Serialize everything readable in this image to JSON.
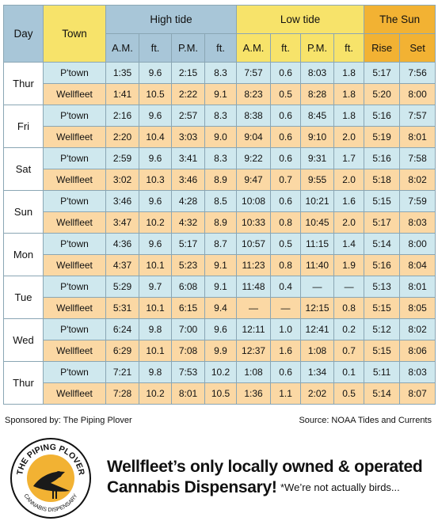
{
  "headers": {
    "day": "Day",
    "town": "Town",
    "high_tide": "High tide",
    "low_tide": "Low tide",
    "sun": "The Sun",
    "am": "A.M.",
    "ft": "ft.",
    "pm": "P.M.",
    "rise": "Rise",
    "set": "Set"
  },
  "days": [
    {
      "day": "Thur",
      "rows": [
        {
          "town": "P'town",
          "h_am": "1:35",
          "h_am_ft": "9.6",
          "h_pm": "2:15",
          "h_pm_ft": "8.3",
          "l_am": "7:57",
          "l_am_ft": "0.6",
          "l_pm": "8:03",
          "l_pm_ft": "1.8",
          "rise": "5:17",
          "set": "7:56"
        },
        {
          "town": "Wellfleet",
          "h_am": "1:41",
          "h_am_ft": "10.5",
          "h_pm": "2:22",
          "h_pm_ft": "9.1",
          "l_am": "8:23",
          "l_am_ft": "0.5",
          "l_pm": "8:28",
          "l_pm_ft": "1.8",
          "rise": "5:20",
          "set": "8:00"
        }
      ]
    },
    {
      "day": "Fri",
      "rows": [
        {
          "town": "P'town",
          "h_am": "2:16",
          "h_am_ft": "9.6",
          "h_pm": "2:57",
          "h_pm_ft": "8.3",
          "l_am": "8:38",
          "l_am_ft": "0.6",
          "l_pm": "8:45",
          "l_pm_ft": "1.8",
          "rise": "5:16",
          "set": "7:57"
        },
        {
          "town": "Wellfleet",
          "h_am": "2:20",
          "h_am_ft": "10.4",
          "h_pm": "3:03",
          "h_pm_ft": "9.0",
          "l_am": "9:04",
          "l_am_ft": "0.6",
          "l_pm": "9:10",
          "l_pm_ft": "2.0",
          "rise": "5:19",
          "set": "8:01"
        }
      ]
    },
    {
      "day": "Sat",
      "rows": [
        {
          "town": "P'town",
          "h_am": "2:59",
          "h_am_ft": "9.6",
          "h_pm": "3:41",
          "h_pm_ft": "8.3",
          "l_am": "9:22",
          "l_am_ft": "0.6",
          "l_pm": "9:31",
          "l_pm_ft": "1.7",
          "rise": "5:16",
          "set": "7:58"
        },
        {
          "town": "Wellfleet",
          "h_am": "3:02",
          "h_am_ft": "10.3",
          "h_pm": "3:46",
          "h_pm_ft": "8.9",
          "l_am": "9:47",
          "l_am_ft": "0.7",
          "l_pm": "9:55",
          "l_pm_ft": "2.0",
          "rise": "5:18",
          "set": "8:02"
        }
      ]
    },
    {
      "day": "Sun",
      "rows": [
        {
          "town": "P'town",
          "h_am": "3:46",
          "h_am_ft": "9.6",
          "h_pm": "4:28",
          "h_pm_ft": "8.5",
          "l_am": "10:08",
          "l_am_ft": "0.6",
          "l_pm": "10:21",
          "l_pm_ft": "1.6",
          "rise": "5:15",
          "set": "7:59"
        },
        {
          "town": "Wellfleet",
          "h_am": "3:47",
          "h_am_ft": "10.2",
          "h_pm": "4:32",
          "h_pm_ft": "8.9",
          "l_am": "10:33",
          "l_am_ft": "0.8",
          "l_pm": "10:45",
          "l_pm_ft": "2.0",
          "rise": "5:17",
          "set": "8:03"
        }
      ]
    },
    {
      "day": "Mon",
      "rows": [
        {
          "town": "P'town",
          "h_am": "4:36",
          "h_am_ft": "9.6",
          "h_pm": "5:17",
          "h_pm_ft": "8.7",
          "l_am": "10:57",
          "l_am_ft": "0.5",
          "l_pm": "11:15",
          "l_pm_ft": "1.4",
          "rise": "5:14",
          "set": "8:00"
        },
        {
          "town": "Wellfleet",
          "h_am": "4:37",
          "h_am_ft": "10.1",
          "h_pm": "5:23",
          "h_pm_ft": "9.1",
          "l_am": "11:23",
          "l_am_ft": "0.8",
          "l_pm": "11:40",
          "l_pm_ft": "1.9",
          "rise": "5:16",
          "set": "8:04"
        }
      ]
    },
    {
      "day": "Tue",
      "rows": [
        {
          "town": "P'town",
          "h_am": "5:29",
          "h_am_ft": "9.7",
          "h_pm": "6:08",
          "h_pm_ft": "9.1",
          "l_am": "11:48",
          "l_am_ft": "0.4",
          "l_pm": "—",
          "l_pm_ft": "—",
          "rise": "5:13",
          "set": "8:01"
        },
        {
          "town": "Wellfleet",
          "h_am": "5:31",
          "h_am_ft": "10.1",
          "h_pm": "6:15",
          "h_pm_ft": "9.4",
          "l_am": "—",
          "l_am_ft": "—",
          "l_pm": "12:15",
          "l_pm_ft": "0.8",
          "rise": "5:15",
          "set": "8:05"
        }
      ]
    },
    {
      "day": "Wed",
      "rows": [
        {
          "town": "P'town",
          "h_am": "6:24",
          "h_am_ft": "9.8",
          "h_pm": "7:00",
          "h_pm_ft": "9.6",
          "l_am": "12:11",
          "l_am_ft": "1.0",
          "l_pm": "12:41",
          "l_pm_ft": "0.2",
          "rise": "5:12",
          "set": "8:02"
        },
        {
          "town": "Wellfleet",
          "h_am": "6:29",
          "h_am_ft": "10.1",
          "h_pm": "7:08",
          "h_pm_ft": "9.9",
          "l_am": "12:37",
          "l_am_ft": "1.6",
          "l_pm": "1:08",
          "l_pm_ft": "0.7",
          "rise": "5:15",
          "set": "8:06"
        }
      ]
    },
    {
      "day": "Thur",
      "rows": [
        {
          "town": "P'town",
          "h_am": "7:21",
          "h_am_ft": "9.8",
          "h_pm": "7:53",
          "h_pm_ft": "10.2",
          "l_am": "1:08",
          "l_am_ft": "0.6",
          "l_pm": "1:34",
          "l_pm_ft": "0.1",
          "rise": "5:11",
          "set": "8:03"
        },
        {
          "town": "Wellfleet",
          "h_am": "7:28",
          "h_am_ft": "10.2",
          "h_pm": "8:01",
          "h_pm_ft": "10.5",
          "l_am": "1:36",
          "l_am_ft": "1.1",
          "l_pm": "2:02",
          "l_pm_ft": "0.5",
          "rise": "5:14",
          "set": "8:07"
        }
      ]
    }
  ],
  "footer": {
    "sponsor": "Sponsored by: The Piping Plover",
    "source": "Source: NOAA Tides and Currents"
  },
  "ad": {
    "logo_top": "THE PIPING PLOVER",
    "logo_bottom": "CANNABIS DISPENSARY",
    "line1": "Wellfleet’s only locally owned & operated",
    "line2": "Cannabis Dispensary!",
    "note": "*We’re not actually birds..."
  },
  "colors": {
    "blue_header": "#a8c6d8",
    "yellow_header": "#f7e36a",
    "orange_header": "#f2b233",
    "ptown_row": "#cfe8ee",
    "wellfleet_row": "#fbd8a4"
  }
}
